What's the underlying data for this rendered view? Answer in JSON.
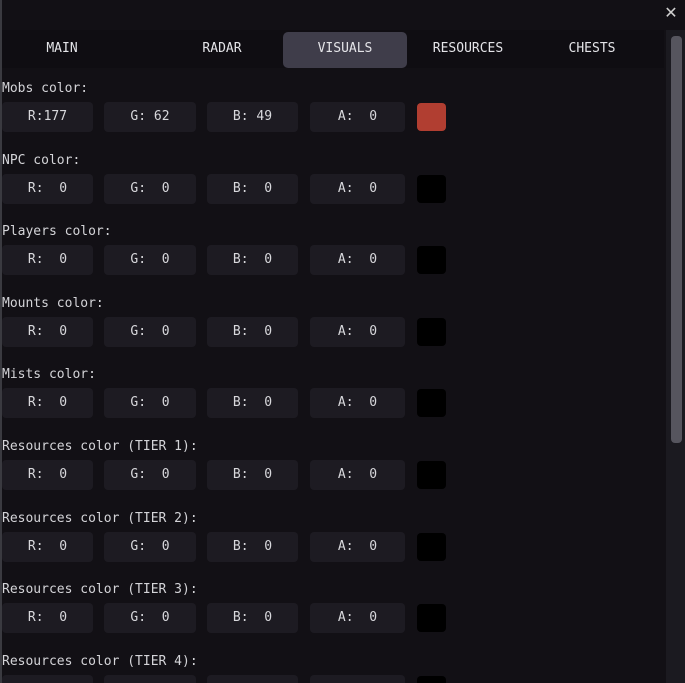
{
  "window": {
    "close_icon": "close-x-icon"
  },
  "tabs": [
    {
      "label": "MAIN",
      "active": false
    },
    {
      "label": "RADAR",
      "active": false
    },
    {
      "label": "VISUALS",
      "active": true
    },
    {
      "label": "RESOURCES",
      "active": false
    },
    {
      "label": "CHESTS",
      "active": false
    }
  ],
  "groups": [
    {
      "label": "Mobs color:",
      "r": "R:177",
      "g": "G: 62",
      "b": "B: 49",
      "a": "A:  0",
      "swatch": "#b13e31"
    },
    {
      "label": "NPC color:",
      "r": "R:  0",
      "g": "G:  0",
      "b": "B:  0",
      "a": "A:  0",
      "swatch": "#000000"
    },
    {
      "label": "Players color:",
      "r": "R:  0",
      "g": "G:  0",
      "b": "B:  0",
      "a": "A:  0",
      "swatch": "#000000"
    },
    {
      "label": "Mounts color:",
      "r": "R:  0",
      "g": "G:  0",
      "b": "B:  0",
      "a": "A:  0",
      "swatch": "#000000"
    },
    {
      "label": "Mists color:",
      "r": "R:  0",
      "g": "G:  0",
      "b": "B:  0",
      "a": "A:  0",
      "swatch": "#000000"
    },
    {
      "label": "Resources color (TIER 1):",
      "r": "R:  0",
      "g": "G:  0",
      "b": "B:  0",
      "a": "A:  0",
      "swatch": "#000000"
    },
    {
      "label": "Resources color (TIER 2):",
      "r": "R:  0",
      "g": "G:  0",
      "b": "B:  0",
      "a": "A:  0",
      "swatch": "#000000"
    },
    {
      "label": "Resources color (TIER 3):",
      "r": "R:  0",
      "g": "G:  0",
      "b": "B:  0",
      "a": "A:  0",
      "swatch": "#000000"
    },
    {
      "label": "Resources color (TIER 4):",
      "r": "",
      "g": "",
      "b": "",
      "a": "",
      "swatch": "#000000"
    }
  ]
}
